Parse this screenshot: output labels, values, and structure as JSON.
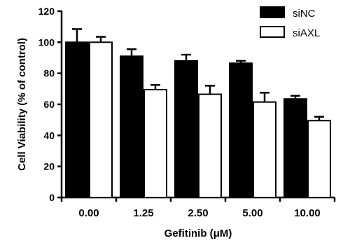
{
  "chart_data": {
    "type": "bar",
    "xlabel": "Gefitinib (μM)",
    "ylabel": "Cell Viability (% of control)",
    "ylim": [
      0,
      120
    ],
    "yticks": [
      "0",
      "20",
      "40",
      "60",
      "80",
      "100",
      "120"
    ],
    "categories": [
      "0.00",
      "1.25",
      "2.50",
      "5.00",
      "10.00"
    ],
    "legend_position": "top-right",
    "series": [
      {
        "name": "siNC",
        "color": "#000000",
        "values": [
          100,
          91,
          88,
          86.5,
          63.5
        ],
        "errors": [
          8.5,
          4.5,
          4,
          1.5,
          2
        ]
      },
      {
        "name": "siAXL",
        "color": "#ffffff",
        "values": [
          100,
          69.5,
          66.5,
          61.5,
          49.5
        ],
        "errors": [
          3.5,
          3,
          5.5,
          6,
          2.5
        ]
      }
    ]
  }
}
